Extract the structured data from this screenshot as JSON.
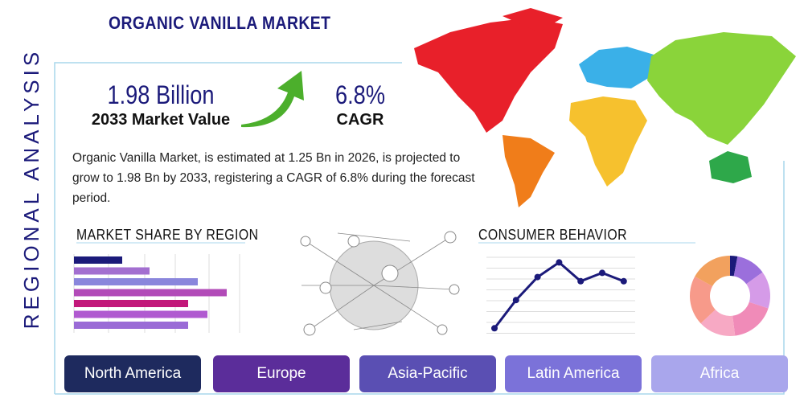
{
  "header": {
    "title": "ORGANIC VANILLA MARKET",
    "side_label": "REGIONAL ANALYSIS"
  },
  "stats": [
    {
      "value": "1.98 Billion",
      "label": "2033 Market Value"
    },
    {
      "value": "6.8%",
      "label": "CAGR"
    }
  ],
  "description": "Organic Vanilla Market, is estimated at 1.25 Bn in 2026, is projected to grow to 1.98 Bn by 2033, registering a CAGR of 6.8% during the forecast period.",
  "market_share_chart": {
    "type": "bar",
    "title": "MARKET SHARE BY REGION",
    "values": [
      30,
      47,
      77,
      95,
      71,
      83,
      71
    ],
    "colors": [
      "#1b1a7a",
      "#a36fd0",
      "#8a86dc",
      "#b24bb8",
      "#c2187a",
      "#b05ad0",
      "#9a6bd6"
    ]
  },
  "consumer_behavior_chart": {
    "type": "line",
    "title": "CONSUMER BEHAVIOR",
    "values": [
      0.9,
      3.6,
      5.8,
      7.2,
      5.4,
      6.2,
      5.4
    ],
    "color": "#1b1a7a"
  },
  "region_donut": {
    "type": "pie",
    "values": [
      3,
      12,
      15,
      18,
      15,
      20,
      17
    ],
    "colors": [
      "#1b1a7a",
      "#9b6fdc",
      "#d59be8",
      "#f08bb8",
      "#f7a9c4",
      "#f79a8a",
      "#f2a15e"
    ]
  },
  "tabs": [
    "North America",
    "Europe",
    "Asia-Pacific",
    "Latin America",
    "Africa"
  ]
}
